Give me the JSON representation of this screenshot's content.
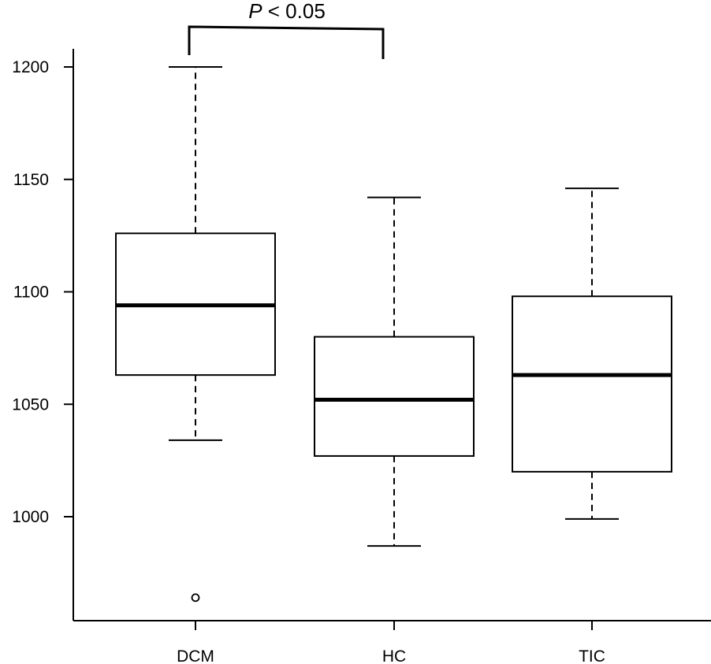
{
  "chart_data": {
    "type": "box",
    "title": "",
    "xlabel": "",
    "ylabel": "",
    "ylim": [
      962,
      1224
    ],
    "yticks": [
      1000,
      1050,
      1100,
      1150,
      1200
    ],
    "categories": [
      "DCM",
      "HC",
      "TIC"
    ],
    "boxes": [
      {
        "category": "DCM",
        "whisker_low": 1034,
        "q1": 1063,
        "median": 1094,
        "q3": 1126,
        "whisker_high": 1200,
        "outliers": [
          964
        ]
      },
      {
        "category": "HC",
        "whisker_low": 987,
        "q1": 1027,
        "median": 1052,
        "q3": 1080,
        "whisker_high": 1142,
        "outliers": []
      },
      {
        "category": "TIC",
        "whisker_low": 999,
        "q1": 1020,
        "median": 1063,
        "q3": 1098,
        "whisker_high": 1146,
        "outliers": []
      }
    ],
    "annotations": [
      {
        "text_italic": "P",
        "text_rest": " < 0.05",
        "from": "DCM",
        "to": "HC"
      }
    ],
    "grid": false,
    "legend": "none"
  }
}
